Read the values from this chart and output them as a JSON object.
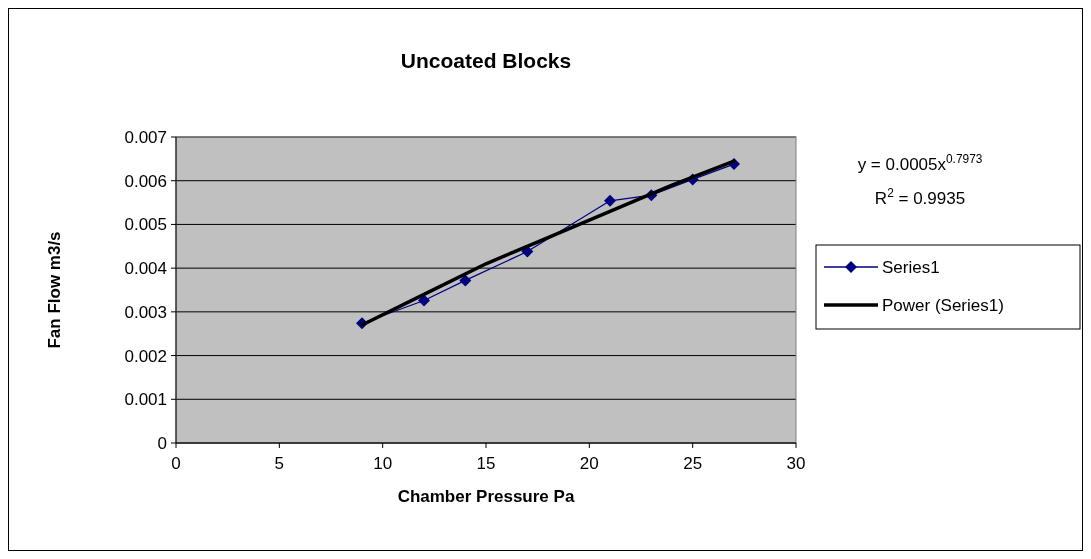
{
  "chart_data": {
    "type": "line",
    "title": "Uncoated Blocks",
    "xlabel": "Chamber Pressure Pa",
    "ylabel": "Fan Flow m3/s",
    "x": [
      9,
      12,
      14,
      17,
      21,
      23,
      25,
      27
    ],
    "series": [
      {
        "name": "Series1",
        "color": "#000080",
        "values": [
          0.00274,
          0.00326,
          0.00372,
          0.00438,
          0.00554,
          0.00567,
          0.00603,
          0.00638
        ],
        "marker": "diamond"
      },
      {
        "name": "Power (Series1)",
        "color": "#000000",
        "type": "line",
        "x": [
          9,
          12,
          15,
          18,
          21,
          24,
          27
        ],
        "values": [
          0.0027,
          0.0034,
          0.0041,
          0.0047,
          0.0053,
          0.0059,
          0.00645
        ],
        "marker": "none"
      }
    ],
    "xlim": [
      0,
      30
    ],
    "xticks": [
      0,
      5,
      10,
      15,
      20,
      25,
      30
    ],
    "ylim": [
      0,
      0.007
    ],
    "yticks": [
      {
        "value": 0,
        "label": "0"
      },
      {
        "value": 0.001,
        "label": "0.001"
      },
      {
        "value": 0.002,
        "label": "0.002"
      },
      {
        "value": 0.003,
        "label": "0.003"
      },
      {
        "value": 0.004,
        "label": "0.004"
      },
      {
        "value": 0.005,
        "label": "0.005"
      },
      {
        "value": 0.006,
        "label": "0.006"
      },
      {
        "value": 0.007,
        "label": "0.007"
      }
    ],
    "grid": "y",
    "legend": "right",
    "annotations": [
      "y = 0.0005x$^{0.7973}$",
      "R$^{2}$ = 0.9935"
    ]
  }
}
